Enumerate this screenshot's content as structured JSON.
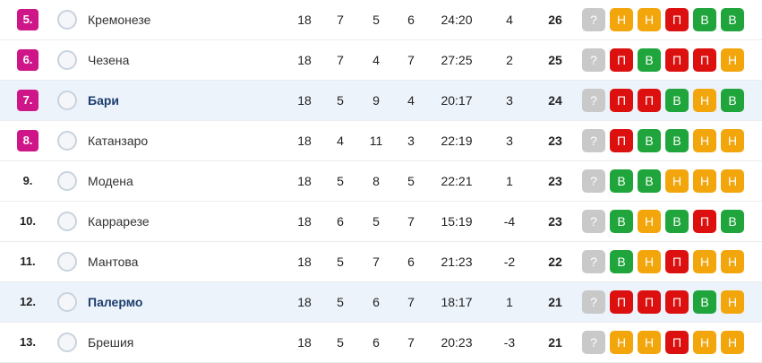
{
  "table": {
    "rows": [
      {
        "rank": "5.",
        "team": "Кремонезе",
        "played": 18,
        "won": 7,
        "drawn": 5,
        "lost": 6,
        "goals": "24:20",
        "diff": 4,
        "points": 26,
        "form": [
          "?",
          "Н",
          "Н",
          "П",
          "В",
          "В"
        ]
      },
      {
        "rank": "6.",
        "team": "Чезена",
        "played": 18,
        "won": 7,
        "drawn": 4,
        "lost": 7,
        "goals": "27:25",
        "diff": 2,
        "points": 25,
        "form": [
          "?",
          "П",
          "В",
          "П",
          "П",
          "Н"
        ]
      },
      {
        "rank": "7.",
        "team": "Бари",
        "played": 18,
        "won": 5,
        "drawn": 9,
        "lost": 4,
        "goals": "20:17",
        "diff": 3,
        "points": 24,
        "form": [
          "?",
          "П",
          "П",
          "В",
          "Н",
          "В"
        ]
      },
      {
        "rank": "8.",
        "team": "Катанзаро",
        "played": 18,
        "won": 4,
        "drawn": 11,
        "lost": 3,
        "goals": "22:19",
        "diff": 3,
        "points": 23,
        "form": [
          "?",
          "П",
          "В",
          "В",
          "Н",
          "Н"
        ]
      },
      {
        "rank": "9.",
        "team": "Модена",
        "played": 18,
        "won": 5,
        "drawn": 8,
        "lost": 5,
        "goals": "22:21",
        "diff": 1,
        "points": 23,
        "form": [
          "?",
          "В",
          "В",
          "Н",
          "Н",
          "Н"
        ]
      },
      {
        "rank": "10.",
        "team": "Каррарезе",
        "played": 18,
        "won": 6,
        "drawn": 5,
        "lost": 7,
        "goals": "15:19",
        "diff": -4,
        "points": 23,
        "form": [
          "?",
          "В",
          "Н",
          "В",
          "П",
          "В"
        ]
      },
      {
        "rank": "11.",
        "team": "Мантова",
        "played": 18,
        "won": 5,
        "drawn": 7,
        "lost": 6,
        "goals": "21:23",
        "diff": -2,
        "points": 22,
        "form": [
          "?",
          "В",
          "Н",
          "П",
          "Н",
          "Н"
        ]
      },
      {
        "rank": "12.",
        "team": "Палермо",
        "played": 18,
        "won": 5,
        "drawn": 6,
        "lost": 7,
        "goals": "18:17",
        "diff": 1,
        "points": 21,
        "form": [
          "?",
          "П",
          "П",
          "П",
          "В",
          "Н"
        ]
      },
      {
        "rank": "13.",
        "team": "Брешия",
        "played": 18,
        "won": 5,
        "drawn": 6,
        "lost": 7,
        "goals": "20:23",
        "diff": -3,
        "points": 21,
        "form": [
          "?",
          "Н",
          "Н",
          "П",
          "Н",
          "Н"
        ]
      }
    ]
  },
  "form_colors": {
    "?": "#c9c9c9",
    "Н": "#f2a60c",
    "П": "#dd1010",
    "В": "#1fa53c"
  }
}
